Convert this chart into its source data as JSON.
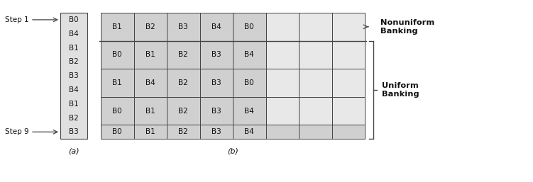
{
  "fig_width": 7.51,
  "fig_height": 2.57,
  "dpi": 100,
  "bg_color": "#ffffff",
  "filled_color": "#d0d0d0",
  "empty_color": "#e8e8e8",
  "col_a_color": "#e0e0e0",
  "edge_color": "#444444",
  "text_color": "#111111",
  "col_a_labels": [
    "B0",
    "B4",
    "B1",
    "B2",
    "B3",
    "B4",
    "B1",
    "B2",
    "B3"
  ],
  "step1_label": "Step 1",
  "step9_label": "Step 9",
  "label_a": "(a)",
  "label_b": "(b)",
  "nonuniform_label": "Nonuniform\nBanking",
  "uniform_label": "Uniform\nBanking",
  "rows": [
    {
      "cells": [
        "B1",
        "B2",
        "B3",
        "B4",
        "B0",
        "",
        "",
        ""
      ],
      "mode": "nonuniform"
    },
    {
      "cells": [
        "B0",
        "B1",
        "B2",
        "B3",
        "B4",
        "",
        "",
        ""
      ],
      "mode": "bank1"
    },
    {
      "cells": [
        "B1",
        "B4",
        "B2",
        "B3",
        "B0",
        "",
        "",
        ""
      ],
      "mode": "bank2"
    },
    {
      "cells": [
        "B0",
        "B1",
        "B2",
        "B3",
        "B4",
        "",
        "",
        ""
      ],
      "mode": "bank4"
    },
    {
      "cells": [
        "B0",
        "B1",
        "B2",
        "B3",
        "B4",
        "",
        "",
        ""
      ],
      "mode": "bank8"
    }
  ]
}
